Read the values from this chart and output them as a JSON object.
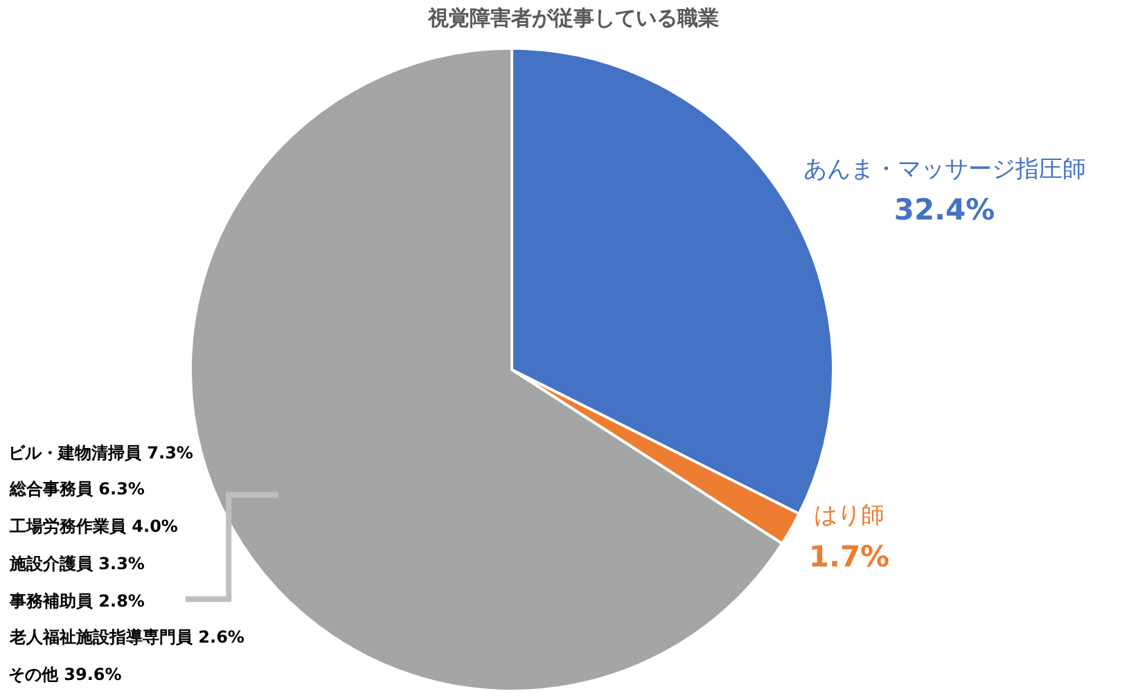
{
  "chart_data": {
    "type": "pie",
    "title": "視覚障害者が従事している職業",
    "categories": [
      "あんま・マッサージ指圧師",
      "はり師",
      null
    ],
    "values": [
      32.4,
      1.7,
      65.9
    ],
    "colors": [
      "#4472c4",
      "#ed7d31",
      "#a5a5a5"
    ],
    "value_labels": [
      "32.4%",
      "1.7%",
      null
    ],
    "annotations": [
      "ビル・建物清掃員 7.3%",
      "総合事務員 6.3%",
      "工場労務作業員 4.0%",
      "施設介護員 3.3%",
      "事務補助員 2.8%",
      "老人福祉施設指導専門員 2.6%",
      "その他 39.6%"
    ],
    "legend": false
  }
}
